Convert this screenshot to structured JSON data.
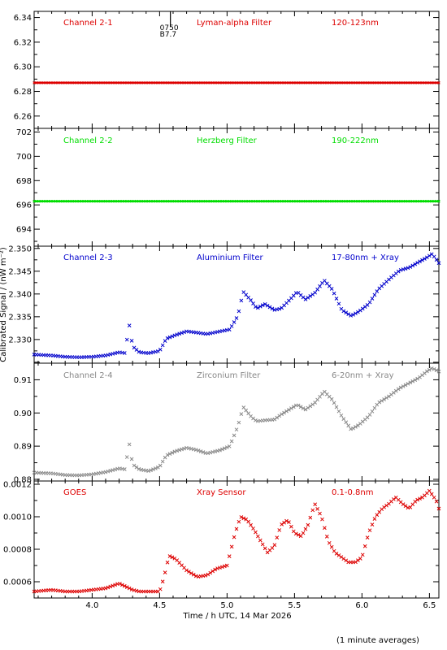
{
  "figure": {
    "xlabel": "Time / h UTC, 14 Mar 2026",
    "ylabel": "Calibrated Signal / (nW m⁻²)",
    "footnote": "(1 minute averages)",
    "x_ticks": [
      "4.0",
      "4.5",
      "5.0",
      "5.5",
      "6.0",
      "6.5"
    ],
    "xlim": [
      3.57,
      6.57
    ],
    "marker_line": {
      "x": 4.58,
      "label_top": "0750",
      "label_bottom": "B7.7"
    }
  },
  "chart_data": [
    {
      "type": "scatter",
      "id": "ch1",
      "labels": {
        "channel": "Channel 2-1",
        "filter": "Lyman-alpha Filter",
        "band": "120-123nm"
      },
      "color": "#dd0000",
      "ylim": [
        6.25,
        6.345
      ],
      "y_ticks": [
        "6.26",
        "6.28",
        "6.30",
        "6.32",
        "6.34"
      ],
      "y_tick_values": [
        6.26,
        6.28,
        6.3,
        6.32,
        6.34
      ],
      "series": [
        {
          "x": [
            3.57,
            6.57
          ],
          "y": [
            6.287,
            6.287
          ]
        }
      ]
    },
    {
      "type": "scatter",
      "id": "ch2",
      "labels": {
        "channel": "Channel 2-2",
        "filter": "Herzberg Filter",
        "band": "190-222nm"
      },
      "color": "#00dd00",
      "ylim": [
        692.6,
        702.3
      ],
      "y_ticks": [
        "694",
        "696",
        "698",
        "700",
        "702"
      ],
      "y_tick_values": [
        694,
        696,
        698,
        700,
        702
      ],
      "series": [
        {
          "x": [
            3.57,
            6.57
          ],
          "y": [
            696.3,
            696.3
          ]
        }
      ]
    },
    {
      "type": "scatter",
      "id": "ch3",
      "labels": {
        "channel": "Channel 2-3",
        "filter": "Aluminium Filter",
        "band": "17-80nm + Xray"
      },
      "color": "#0000cc",
      "ylim": [
        2.3248,
        2.3505
      ],
      "y_ticks": [
        "2.330",
        "2.335",
        "2.340",
        "2.345",
        "2.350"
      ],
      "y_tick_values": [
        2.33,
        2.335,
        2.34,
        2.345,
        2.35
      ],
      "series": [
        {
          "x": [
            3.57,
            3.7,
            3.8,
            3.9,
            4.0,
            4.1,
            4.2,
            4.25,
            4.27,
            4.3,
            4.35,
            4.42,
            4.5,
            4.55,
            4.62,
            4.7,
            4.78,
            4.85,
            4.95,
            5.02,
            5.08,
            5.12,
            5.18,
            5.22,
            5.28,
            5.35,
            5.4,
            5.48,
            5.52,
            5.58,
            5.65,
            5.72,
            5.78,
            5.85,
            5.92,
            5.98,
            6.05,
            6.12,
            6.2,
            6.28,
            6.35,
            6.42,
            6.48,
            6.52,
            6.57
          ],
          "y": [
            2.3267,
            2.3265,
            2.3262,
            2.3261,
            2.3262,
            2.3265,
            2.3272,
            2.327,
            2.3342,
            2.3285,
            2.3272,
            2.327,
            2.3275,
            2.3302,
            2.331,
            2.3318,
            2.3315,
            2.3312,
            2.3318,
            2.3322,
            2.3352,
            2.3405,
            2.3385,
            2.3368,
            2.3378,
            2.3365,
            2.3368,
            2.3392,
            2.3405,
            2.3388,
            2.3402,
            2.343,
            2.341,
            2.3365,
            2.3352,
            2.3362,
            2.3378,
            2.341,
            2.3432,
            2.3452,
            2.3458,
            2.347,
            2.348,
            2.3488,
            2.3468
          ]
        }
      ]
    },
    {
      "type": "scatter",
      "id": "ch4",
      "labels": {
        "channel": "Channel 2-4",
        "filter": "Zirconium Filter",
        "band": "6-20nm + Xray"
      },
      "color": "#888888",
      "ylim": [
        0.8795,
        0.915
      ],
      "y_ticks": [
        "0.88",
        "0.89",
        "0.90",
        "0.91"
      ],
      "y_tick_values": [
        0.88,
        0.89,
        0.9,
        0.91
      ],
      "series": [
        {
          "x": [
            3.57,
            3.7,
            3.8,
            3.9,
            4.0,
            4.1,
            4.2,
            4.25,
            4.27,
            4.3,
            4.35,
            4.42,
            4.5,
            4.55,
            4.62,
            4.7,
            4.78,
            4.85,
            4.95,
            5.02,
            5.08,
            5.12,
            5.18,
            5.22,
            5.28,
            5.35,
            5.4,
            5.48,
            5.52,
            5.58,
            5.65,
            5.72,
            5.78,
            5.85,
            5.92,
            5.98,
            6.05,
            6.12,
            6.2,
            6.28,
            6.35,
            6.42,
            6.48,
            6.52,
            6.57
          ],
          "y": [
            0.882,
            0.8818,
            0.8813,
            0.8812,
            0.8815,
            0.8822,
            0.8833,
            0.883,
            0.892,
            0.8845,
            0.883,
            0.8825,
            0.8838,
            0.8872,
            0.8885,
            0.8895,
            0.8888,
            0.8878,
            0.8888,
            0.89,
            0.896,
            0.9018,
            0.8988,
            0.8975,
            0.8978,
            0.898,
            0.8995,
            0.9015,
            0.9025,
            0.901,
            0.903,
            0.9065,
            0.904,
            0.899,
            0.895,
            0.8965,
            0.899,
            0.903,
            0.905,
            0.9075,
            0.909,
            0.9105,
            0.9125,
            0.9135,
            0.9125
          ]
        }
      ]
    },
    {
      "type": "scatter",
      "id": "ch5",
      "labels": {
        "channel": "GOES",
        "filter": "Xray Sensor",
        "band": "0.1-0.8nm"
      },
      "color": "#dd0000",
      "ylim": [
        0.0005,
        0.00122
      ],
      "y_ticks": [
        "0.0006",
        "0.0008",
        "0.0010",
        "0.0012"
      ],
      "y_tick_values": [
        0.0006,
        0.0008,
        0.001,
        0.0012
      ],
      "series": [
        {
          "x": [
            3.57,
            3.7,
            3.8,
            3.9,
            4.0,
            4.1,
            4.2,
            4.25,
            4.3,
            4.35,
            4.42,
            4.5,
            4.53,
            4.57,
            4.62,
            4.7,
            4.78,
            4.85,
            4.92,
            5.0,
            5.03,
            5.06,
            5.1,
            5.15,
            5.2,
            5.25,
            5.3,
            5.35,
            5.4,
            5.45,
            5.5,
            5.55,
            5.6,
            5.65,
            5.7,
            5.75,
            5.8,
            5.85,
            5.9,
            5.95,
            6.0,
            6.05,
            6.1,
            6.15,
            6.2,
            6.25,
            6.3,
            6.35,
            6.4,
            6.45,
            6.5,
            6.55,
            6.57
          ],
          "y": [
            0.00054,
            0.00055,
            0.00054,
            0.00054,
            0.00055,
            0.00056,
            0.00059,
            0.00057,
            0.00055,
            0.00054,
            0.00054,
            0.00054,
            0.00062,
            0.00076,
            0.00074,
            0.00067,
            0.00063,
            0.00064,
            0.00068,
            0.0007,
            0.0008,
            0.0009,
            0.001,
            0.00098,
            0.00092,
            0.00085,
            0.00078,
            0.00082,
            0.00095,
            0.00098,
            0.0009,
            0.00088,
            0.00095,
            0.00108,
            0.001,
            0.00085,
            0.00078,
            0.00075,
            0.00072,
            0.00072,
            0.00075,
            0.0009,
            0.001,
            0.00105,
            0.00108,
            0.00112,
            0.00108,
            0.00105,
            0.0011,
            0.00112,
            0.00116,
            0.0011,
            0.00105
          ]
        }
      ]
    }
  ]
}
